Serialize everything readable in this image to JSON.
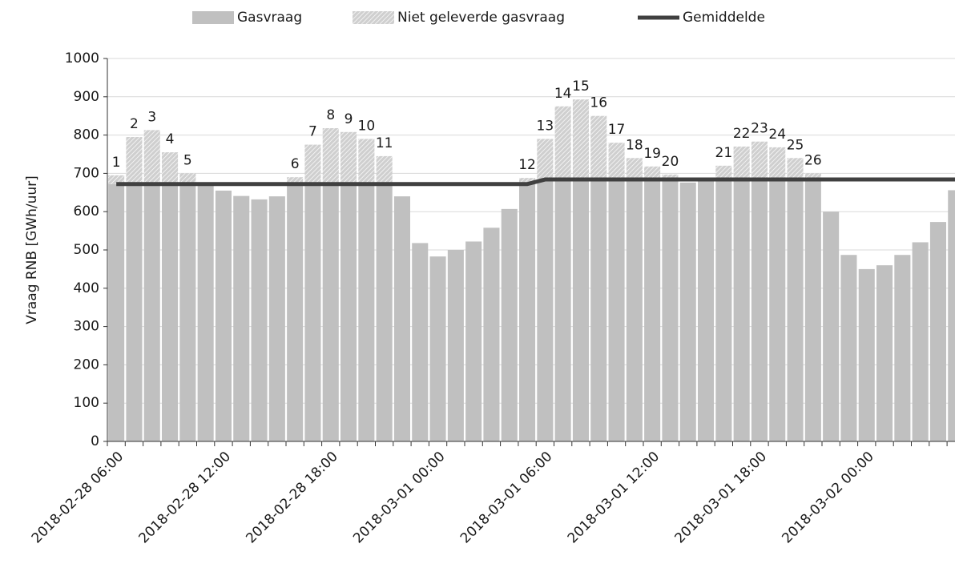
{
  "chart_data": {
    "type": "bar",
    "stacked": true,
    "ylabel": "Vraag RNB [GWh/uur]",
    "categories": [
      "2018-02-28 06:00",
      null,
      null,
      null,
      null,
      null,
      "2018-02-28 12:00",
      null,
      null,
      null,
      null,
      null,
      "2018-02-28 18:00",
      null,
      null,
      null,
      null,
      null,
      "2018-03-01 00:00",
      null,
      null,
      null,
      null,
      null,
      "2018-03-01 06:00",
      null,
      null,
      null,
      null,
      null,
      "2018-03-01 12:00",
      null,
      null,
      null,
      null,
      null,
      "2018-03-01 18:00",
      null,
      null,
      null,
      null,
      null,
      "2018-03-02 00:00",
      null,
      null,
      null,
      null,
      null
    ],
    "series": [
      {
        "name": "Gasvraag",
        "color": "#c0c0c0",
        "values": [
          672,
          672,
          672,
          672,
          672,
          670,
          655,
          641,
          632,
          640,
          672,
          672,
          672,
          672,
          672,
          672,
          640,
          518,
          483,
          500,
          522,
          558,
          607,
          672,
          684,
          684,
          684,
          684,
          684,
          684,
          684,
          684,
          676,
          682,
          684,
          684,
          684,
          684,
          684,
          684,
          600,
          487,
          450,
          460,
          487,
          520,
          573,
          656
        ]
      },
      {
        "name": "Niet geleverde gasvraag",
        "color": "#c8c8c8",
        "pattern": "hatch",
        "values": [
          23,
          123,
          141,
          83,
          28,
          0,
          0,
          0,
          0,
          0,
          18,
          103,
          146,
          136,
          118,
          73,
          0,
          0,
          0,
          0,
          0,
          0,
          0,
          16,
          106,
          191,
          209,
          166,
          96,
          56,
          34,
          13,
          0,
          0,
          36,
          86,
          99,
          84,
          56,
          16,
          0,
          0,
          0,
          0,
          0,
          0,
          0,
          0
        ],
        "bar_labels": [
          "1",
          "2",
          "3",
          "4",
          "5",
          null,
          null,
          null,
          null,
          null,
          "6",
          "7",
          "8",
          "9",
          "10",
          "11",
          null,
          null,
          null,
          null,
          null,
          null,
          null,
          "12",
          "13",
          "14",
          "15",
          "16",
          "17",
          "18",
          "19",
          "20",
          null,
          null,
          "21",
          "22",
          "23",
          "24",
          "25",
          "26",
          null,
          null,
          null,
          null,
          null,
          null,
          null,
          null
        ]
      },
      {
        "name": "Gemiddelde",
        "type": "line",
        "color": "#404040",
        "values": [
          672,
          672,
          672,
          672,
          672,
          672,
          672,
          672,
          672,
          672,
          672,
          672,
          672,
          672,
          672,
          672,
          672,
          672,
          672,
          672,
          672,
          672,
          672,
          672,
          684,
          684,
          684,
          684,
          684,
          684,
          684,
          684,
          684,
          684,
          684,
          684,
          684,
          684,
          684,
          684,
          684,
          684,
          684,
          684,
          684,
          684,
          684,
          684
        ]
      }
    ],
    "ylim": [
      0,
      1000
    ],
    "yticks": [
      0,
      100,
      200,
      300,
      400,
      500,
      600,
      700,
      800,
      900,
      1000
    ],
    "grid": true,
    "legend": "top"
  }
}
